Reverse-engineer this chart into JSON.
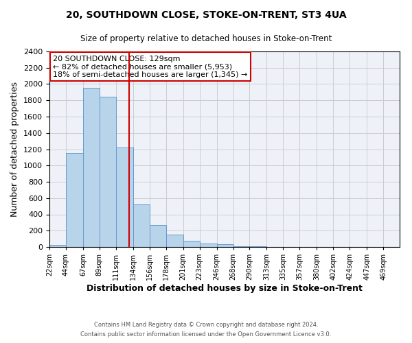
{
  "title": "20, SOUTHDOWN CLOSE, STOKE-ON-TRENT, ST3 4UA",
  "subtitle": "Size of property relative to detached houses in Stoke-on-Trent",
  "xlabel": "Distribution of detached houses by size in Stoke-on-Trent",
  "ylabel": "Number of detached properties",
  "bin_labels": [
    "22sqm",
    "44sqm",
    "67sqm",
    "89sqm",
    "111sqm",
    "134sqm",
    "156sqm",
    "178sqm",
    "201sqm",
    "223sqm",
    "246sqm",
    "268sqm",
    "290sqm",
    "313sqm",
    "335sqm",
    "357sqm",
    "380sqm",
    "402sqm",
    "424sqm",
    "447sqm",
    "469sqm"
  ],
  "bin_edges": [
    22,
    44,
    67,
    89,
    111,
    134,
    156,
    178,
    201,
    223,
    246,
    268,
    290,
    313,
    335,
    357,
    380,
    402,
    424,
    447,
    469
  ],
  "counts": [
    25,
    1155,
    1950,
    1840,
    1225,
    525,
    268,
    148,
    75,
    45,
    35,
    12,
    8,
    3,
    1,
    0,
    0,
    0,
    0,
    0,
    0
  ],
  "property_line_x": 129,
  "bar_color": "#b8d4ea",
  "bar_edge_color": "#6699cc",
  "line_color": "#cc0000",
  "grid_color": "#cccccc",
  "background_color": "#eef2f8",
  "annotation_text": "20 SOUTHDOWN CLOSE: 129sqm\n← 82% of detached houses are smaller (5,953)\n18% of semi-detached houses are larger (1,345) →",
  "footer_line1": "Contains HM Land Registry data © Crown copyright and database right 2024.",
  "footer_line2": "Contains public sector information licensed under the Open Government Licence v3.0.",
  "ylim": [
    0,
    2400
  ],
  "yticks": [
    0,
    200,
    400,
    600,
    800,
    1000,
    1200,
    1400,
    1600,
    1800,
    2000,
    2200,
    2400
  ]
}
